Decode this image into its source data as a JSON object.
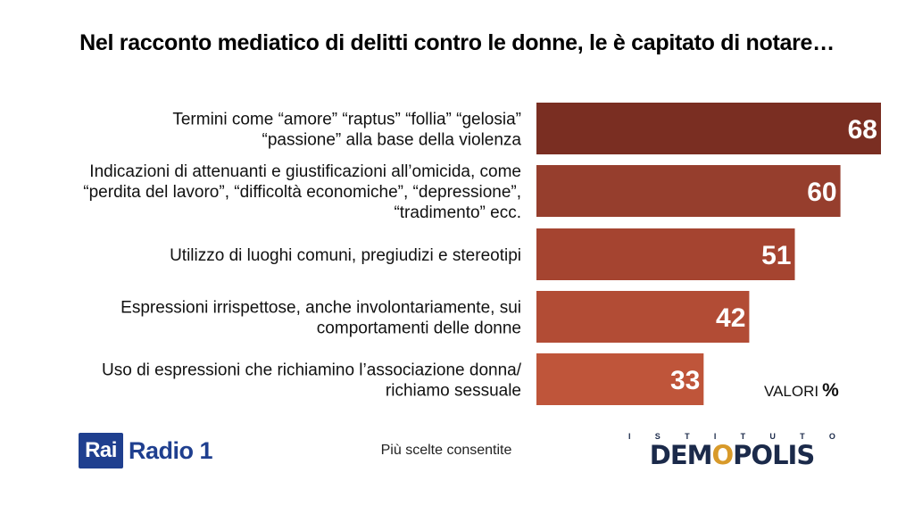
{
  "title": "Nel racconto mediatico di delitti contro le donne, le è capitato di notare…",
  "unit_label": "VALORI",
  "unit_symbol": "%",
  "note": "Più scelte consentite",
  "logos": {
    "rai_box": "Rai",
    "rai_text": "Radio 1",
    "demopolis_top": [
      "I",
      "S",
      "T",
      "I",
      "T",
      "U",
      "T",
      "O"
    ],
    "demopolis_name_a": "DEM",
    "demopolis_name_o": "O",
    "demopolis_name_b": "POLIS"
  },
  "colors": {
    "bar_1": "#7a2e22",
    "bar_2": "#963e2d",
    "bar_3": "#a54430",
    "bar_4": "#b24c35",
    "bar_5": "#bf553a",
    "rai_blue": "#1f3f8f",
    "demopolis_navy": "#1b2a4a",
    "demopolis_gold": "#d89a2a"
  },
  "chart_data": {
    "type": "bar",
    "orientation": "horizontal",
    "title": "Nel racconto mediatico di delitti contro le donne, le è capitato di notare…",
    "categories": [
      [
        "Termini come “amore” “raptus” “follia” “gelosia”",
        "“passione” alla base della violenza"
      ],
      [
        "Indicazioni di attenuanti e giustificazioni all’omicida, come",
        "“perdita del lavoro”, “difficoltà economiche”, “depressione”,",
        "“tradimento” ecc."
      ],
      [
        "Utilizzo di luoghi comuni, pregiudizi e stereotipi"
      ],
      [
        "Espressioni irrispettose, anche involontariamente, sui",
        "comportamenti delle donne"
      ],
      [
        "Uso di espressioni che richiamino l’associazione donna/",
        "richiamo sessuale"
      ]
    ],
    "values": [
      68,
      60,
      51,
      42,
      33
    ],
    "xlim": [
      0,
      68
    ],
    "grid": false,
    "legend": "none"
  }
}
